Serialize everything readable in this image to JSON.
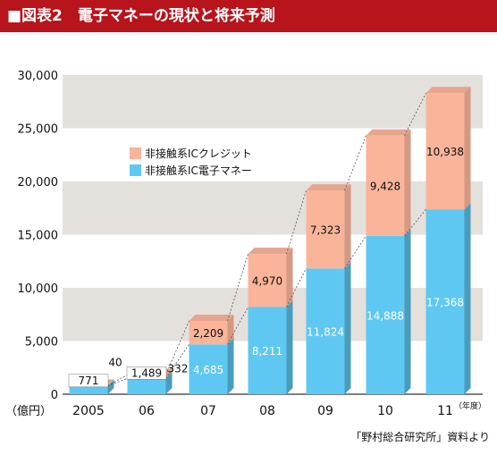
{
  "header": {
    "title": "■図表2　電子マネーの現状と将来予測",
    "bar_color": "#b8141c"
  },
  "source": "「野村総合研究所」資料より",
  "chart_data": {
    "type": "bar",
    "stacked": true,
    "title": "",
    "xlabel": "",
    "ylabel": "",
    "y_unit_label": "（億円）",
    "x_unit_label": "（年度）",
    "ylim": [
      0,
      30000
    ],
    "y_ticks": [
      "0",
      "5,000",
      "10,000",
      "15,000",
      "20,000",
      "25,000",
      "30,000"
    ],
    "y_tick_values": [
      0,
      5000,
      10000,
      15000,
      20000,
      25000,
      30000
    ],
    "categories": [
      "2005",
      "06",
      "07",
      "08",
      "09",
      "10",
      "11"
    ],
    "series": [
      {
        "name": "非接触系IC電子マネー",
        "color": "#5fc8f2",
        "values": [
          771,
          1489,
          4685,
          8211,
          11824,
          14888,
          17368
        ],
        "value_labels": [
          "771",
          "1,489",
          "4,685",
          "8,211",
          "11,824",
          "14,888",
          "17,368"
        ]
      },
      {
        "name": "非接触系ICクレジット",
        "color": "#f9b49a",
        "values": [
          40,
          332,
          2209,
          4970,
          7323,
          9428,
          10938
        ],
        "value_labels": [
          "40",
          "332",
          "2,209",
          "4,970",
          "7,323",
          "9,428",
          "10,938"
        ]
      }
    ],
    "legend": {
      "position": "top-left"
    },
    "grid": "alternating-bands",
    "band_color": "#e4e0dc"
  }
}
